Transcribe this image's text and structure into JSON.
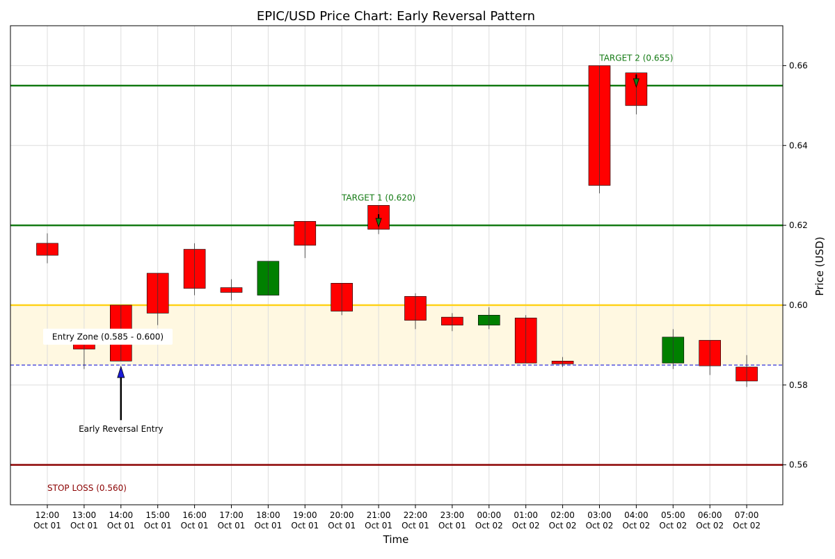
{
  "chart_data": {
    "type": "candlestick",
    "title": "EPIC/USD Price Chart: Early Reversal Pattern",
    "xlabel": "Time",
    "ylabel": "Price (USD)",
    "ylim": [
      0.55,
      0.67
    ],
    "y_ticks": [
      "0.56",
      "0.58",
      "0.60",
      "0.62",
      "0.64",
      "0.66"
    ],
    "grid": true,
    "x_labels": [
      {
        "time": "12:00",
        "date": "Oct 01"
      },
      {
        "time": "13:00",
        "date": "Oct 01"
      },
      {
        "time": "14:00",
        "date": "Oct 01"
      },
      {
        "time": "15:00",
        "date": "Oct 01"
      },
      {
        "time": "16:00",
        "date": "Oct 01"
      },
      {
        "time": "17:00",
        "date": "Oct 01"
      },
      {
        "time": "18:00",
        "date": "Oct 01"
      },
      {
        "time": "19:00",
        "date": "Oct 01"
      },
      {
        "time": "20:00",
        "date": "Oct 01"
      },
      {
        "time": "21:00",
        "date": "Oct 01"
      },
      {
        "time": "22:00",
        "date": "Oct 01"
      },
      {
        "time": "23:00",
        "date": "Oct 01"
      },
      {
        "time": "00:00",
        "date": "Oct 02"
      },
      {
        "time": "01:00",
        "date": "Oct 02"
      },
      {
        "time": "02:00",
        "date": "Oct 02"
      },
      {
        "time": "03:00",
        "date": "Oct 02"
      },
      {
        "time": "04:00",
        "date": "Oct 02"
      },
      {
        "time": "05:00",
        "date": "Oct 02"
      },
      {
        "time": "06:00",
        "date": "Oct 02"
      },
      {
        "time": "07:00",
        "date": "Oct 02"
      }
    ],
    "candles": [
      {
        "open": 0.6155,
        "close": 0.6125,
        "high": 0.618,
        "low": 0.6105
      },
      {
        "open": 0.5905,
        "close": 0.589,
        "high": 0.5925,
        "low": 0.584
      },
      {
        "open": 0.6,
        "close": 0.586,
        "high": 0.6,
        "low": 0.586
      },
      {
        "open": 0.608,
        "close": 0.598,
        "high": 0.608,
        "low": 0.595
      },
      {
        "open": 0.614,
        "close": 0.6042,
        "high": 0.6155,
        "low": 0.6025
      },
      {
        "open": 0.6044,
        "close": 0.6032,
        "high": 0.6065,
        "low": 0.6012
      },
      {
        "open": 0.6025,
        "close": 0.611,
        "high": 0.611,
        "low": 0.6025
      },
      {
        "open": 0.621,
        "close": 0.615,
        "high": 0.621,
        "low": 0.6118
      },
      {
        "open": 0.6055,
        "close": 0.5985,
        "high": 0.6055,
        "low": 0.5975
      },
      {
        "open": 0.625,
        "close": 0.619,
        "high": 0.625,
        "low": 0.6178
      },
      {
        "open": 0.6022,
        "close": 0.5962,
        "high": 0.603,
        "low": 0.594
      },
      {
        "open": 0.597,
        "close": 0.595,
        "high": 0.598,
        "low": 0.5935
      },
      {
        "open": 0.595,
        "close": 0.5975,
        "high": 0.5995,
        "low": 0.594
      },
      {
        "open": 0.5968,
        "close": 0.5855,
        "high": 0.5975,
        "low": 0.5855
      },
      {
        "open": 0.586,
        "close": 0.5853,
        "high": 0.587,
        "low": 0.5845
      },
      {
        "open": 0.66,
        "close": 0.63,
        "high": 0.66,
        "low": 0.628
      },
      {
        "open": 0.6582,
        "close": 0.65,
        "high": 0.6582,
        "low": 0.6478
      },
      {
        "open": 0.5855,
        "close": 0.592,
        "high": 0.594,
        "low": 0.584
      },
      {
        "open": 0.5912,
        "close": 0.5848,
        "high": 0.5912,
        "low": 0.5825
      },
      {
        "open": 0.5845,
        "close": 0.581,
        "high": 0.5875,
        "low": 0.5795
      }
    ],
    "levels": [
      {
        "value": 0.655,
        "label": "TARGET 2 (0.655)",
        "color": "#137a13",
        "style": "solid"
      },
      {
        "value": 0.62,
        "label": "TARGET 1 (0.620)",
        "color": "#137a13",
        "style": "solid"
      },
      {
        "value": 0.6,
        "label": "",
        "color": "#ffd21a",
        "style": "solid"
      },
      {
        "value": 0.585,
        "label": "",
        "color": "#1a1ad6",
        "style": "dashed"
      },
      {
        "value": 0.56,
        "label": "STOP LOSS (0.560)",
        "color": "#8b0000",
        "style": "solid"
      }
    ],
    "entry_zone": {
      "low": 0.585,
      "high": 0.6,
      "label": "Entry Zone (0.585 - 0.600)",
      "color": "#fff8e1"
    },
    "entry_annotation": {
      "label": "Early Reversal Entry",
      "candle_index": 2,
      "price": 0.585,
      "color": "#1a1ad6"
    },
    "colors": {
      "bull": "#008000",
      "bear": "#ff0000",
      "grid": "#dddddd"
    }
  }
}
